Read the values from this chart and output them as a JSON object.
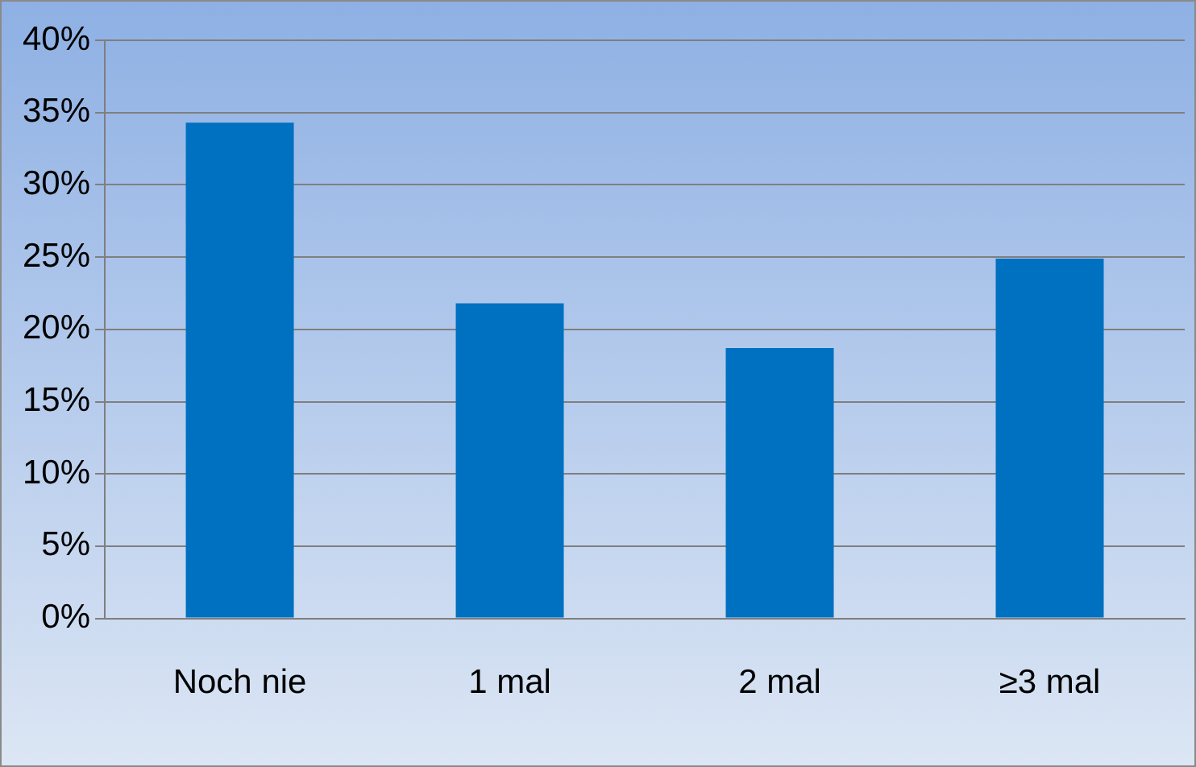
{
  "chart_data": {
    "type": "bar",
    "categories": [
      "Noch nie",
      "1 mal",
      "2 mal",
      "≥3 mal"
    ],
    "values": [
      34.3,
      21.8,
      18.7,
      24.9
    ],
    "color": "#0070c0",
    "ylim": [
      0,
      40
    ],
    "yticks": [
      {
        "value": 0,
        "label": "0%"
      },
      {
        "value": 5,
        "label": "5%"
      },
      {
        "value": 10,
        "label": "10%"
      },
      {
        "value": 15,
        "label": "15%"
      },
      {
        "value": 20,
        "label": "20%"
      },
      {
        "value": 25,
        "label": "25%"
      },
      {
        "value": 30,
        "label": "30%"
      },
      {
        "value": 35,
        "label": "35%"
      },
      {
        "value": 40,
        "label": "40%"
      }
    ],
    "grid": "y",
    "legend": false
  }
}
